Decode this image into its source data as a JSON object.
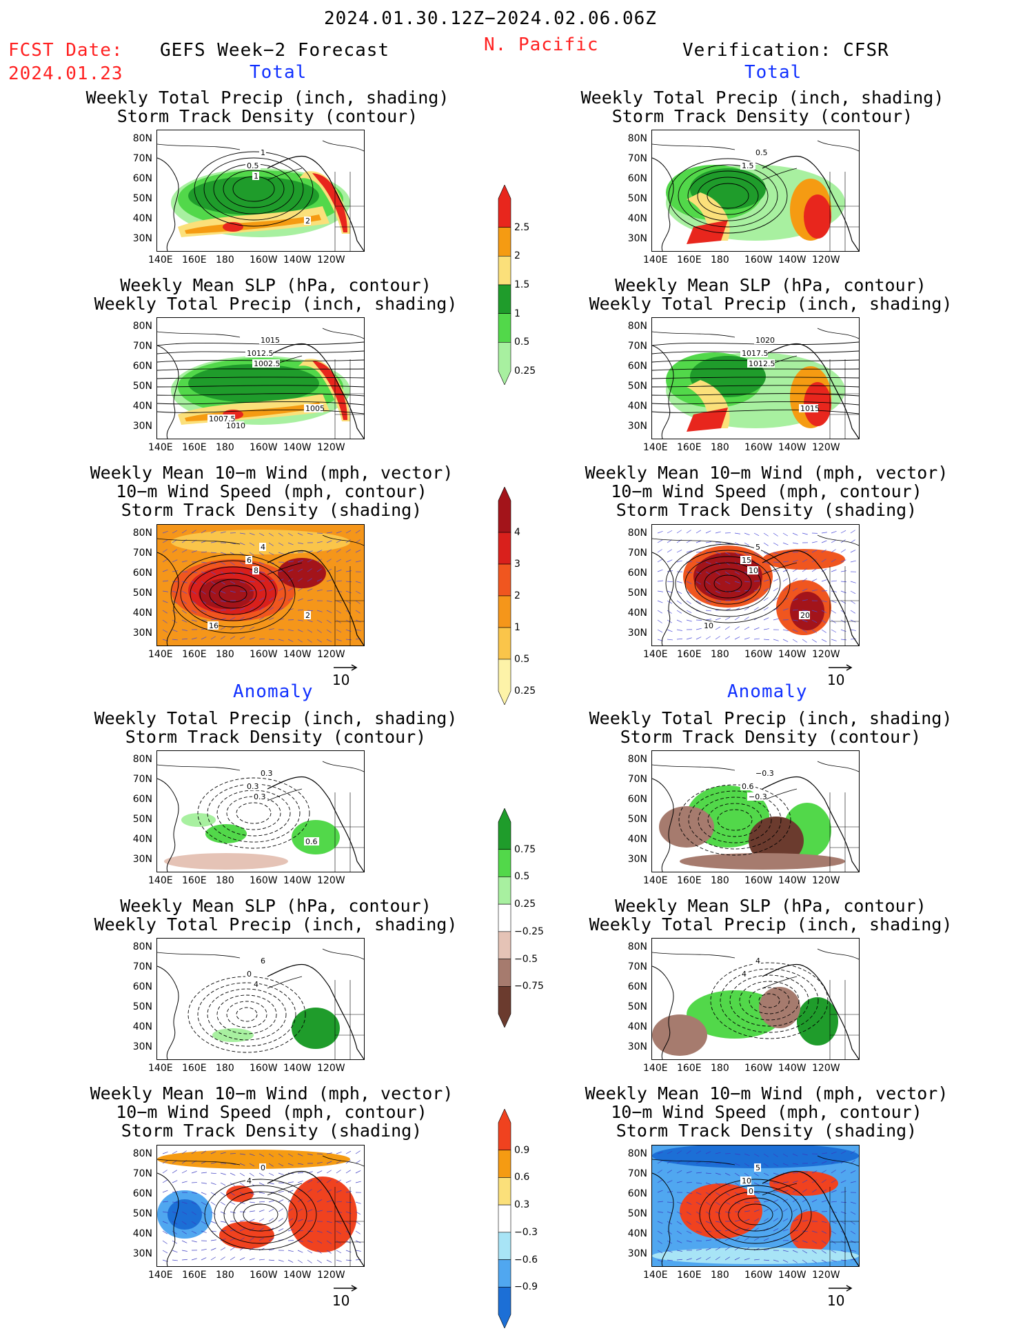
{
  "header": {
    "period": "2024.01.30.12Z−2024.02.06.06Z",
    "fcst_label": "FCST Date:",
    "fcst_date": "2024.01.23",
    "region": "N. Pacific",
    "left_title": "GEFS Week−2 Forecast",
    "right_title": "Verification: CFSR"
  },
  "sections": {
    "total": "Total",
    "anomaly": "Anomaly"
  },
  "panel_titles": {
    "precip_storm": [
      "Weekly Total Precip (inch, shading)",
      "Storm Track Density (contour)"
    ],
    "slp_precip": [
      "Weekly Mean SLP (hPa, contour)",
      "Weekly Total Precip (inch, shading)"
    ],
    "wind_storm": [
      "Weekly Mean 10−m Wind (mph, vector)",
      "10−m Wind Speed (mph, contour)",
      "Storm Track Density (shading)"
    ]
  },
  "axes": {
    "lat_ticks": [
      "80N",
      "70N",
      "60N",
      "50N",
      "40N",
      "30N"
    ],
    "lon_ticks": [
      "140E",
      "160E",
      "180",
      "160W",
      "140W",
      "120W"
    ]
  },
  "vector_ref": "10",
  "colorbars": {
    "precip_total": {
      "labels": [
        "2.5",
        "2",
        "1.5",
        "1",
        "0.5",
        "0.25"
      ],
      "colors": [
        "#e8261d",
        "#f59b12",
        "#fbe07a",
        "#1f9c2b",
        "#52d84a",
        "#a8f0a0"
      ]
    },
    "storm_total": {
      "labels": [
        "4",
        "3",
        "2",
        "1",
        "0.5",
        "0.25"
      ],
      "colors": [
        "#a3141a",
        "#d9201c",
        "#f0561f",
        "#f5961a",
        "#fac54a",
        "#fdf3a8"
      ]
    },
    "precip_anom": {
      "labels": [
        "0.75",
        "0.5",
        "0.25",
        "−0.25",
        "−0.5",
        "−0.75"
      ],
      "colors": [
        "#1f9c2b",
        "#52d84a",
        "#a8f0a0",
        "#ffffff",
        "#e5c3b6",
        "#a67b6e",
        "#6b3b2e"
      ]
    },
    "storm_anom": {
      "labels": [
        "0.9",
        "0.6",
        "0.3",
        "−0.3",
        "−0.6",
        "−0.9"
      ],
      "colors": [
        "#f0421f",
        "#f59b12",
        "#fbe07a",
        "#ffffff",
        "#a8e4f6",
        "#50a7f0",
        "#1c6fd6"
      ]
    }
  },
  "map_labels": {
    "fp1": [
      "1",
      "0.5",
      "1",
      "2"
    ],
    "vp1": [
      "0.5",
      "1.5"
    ],
    "fp2": [
      "1015",
      "1012.5",
      "1002.5",
      "1005",
      "1007.5",
      "1010"
    ],
    "vp2": [
      "1020",
      "1017.5",
      "1012.5",
      "1015"
    ],
    "fp3": [
      "4",
      "6",
      "8",
      "2",
      "16"
    ],
    "vp3": [
      "5",
      "15",
      "10",
      "20",
      "10"
    ],
    "fa1": [
      "0.3",
      "0.3",
      "0.3",
      "0.6"
    ],
    "va1": [
      "−0.3",
      "0.6",
      "−0.3"
    ],
    "fa2": [
      "6",
      "0",
      "4"
    ],
    "va2": [
      "4",
      "4"
    ],
    "fa3": [
      "0",
      "4"
    ],
    "va3": [
      "5",
      "10",
      "0"
    ]
  }
}
